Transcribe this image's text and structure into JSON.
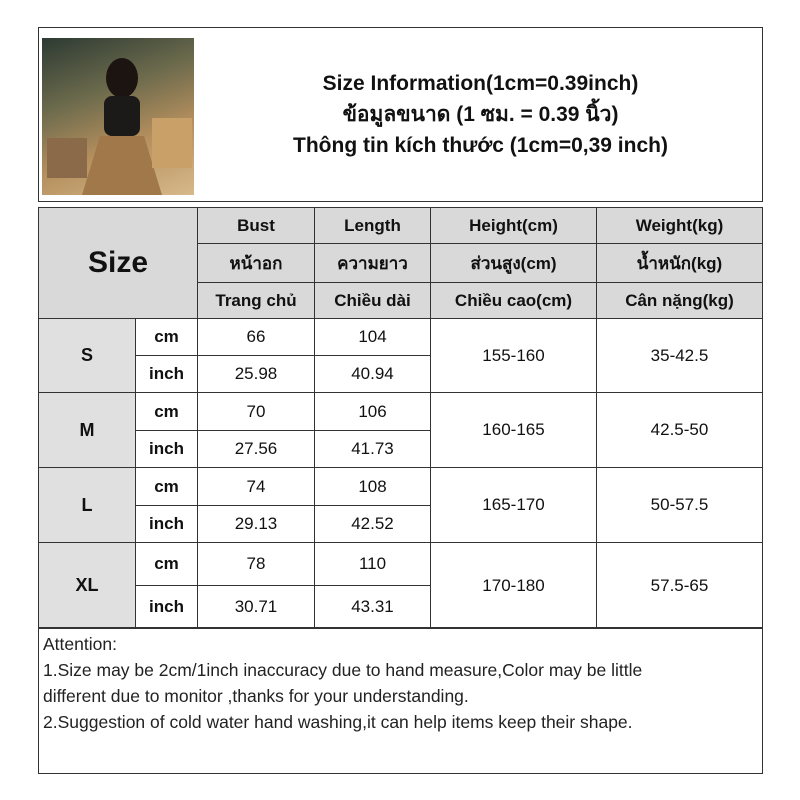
{
  "header": {
    "title_lines": [
      "Size Information(1cm=0.39inch)",
      "ข้อมูลขนาด (1 ซม. = 0.39 นิ้ว)",
      "Thông tin kích thước (1cm=0,39 inch)"
    ]
  },
  "table": {
    "size_label": "Size",
    "columns": [
      {
        "lines": [
          "Bust",
          "หน้าอก",
          "Trang chủ"
        ]
      },
      {
        "lines": [
          "Length",
          "ความยาว",
          "Chiều dài"
        ]
      },
      {
        "lines": [
          "Height(cm)",
          "ส่วนสูง(cm)",
          "Chiều cao(cm)"
        ]
      },
      {
        "lines": [
          "Weight(kg)",
          "น้ำหนัก(kg)",
          "Cân nặng(kg)"
        ]
      }
    ],
    "rows": [
      {
        "size": "S",
        "units": [
          "cm",
          "inch"
        ],
        "bust": [
          66,
          25.98
        ],
        "length": [
          104,
          40.94
        ],
        "height": "155-160",
        "weight": "35-42.5"
      },
      {
        "size": "M",
        "units": [
          "cm",
          "inch"
        ],
        "bust": [
          70,
          27.56
        ],
        "length": [
          106,
          41.73
        ],
        "height": "160-165",
        "weight": "42.5-50"
      },
      {
        "size": "L",
        "units": [
          "cm",
          "inch"
        ],
        "bust": [
          74,
          29.13
        ],
        "length": [
          108,
          42.52
        ],
        "height": "165-170",
        "weight": "50-57.5"
      },
      {
        "size": "XL",
        "units": [
          "cm",
          "inch"
        ],
        "bust": [
          78,
          30.71
        ],
        "length": [
          110,
          43.31
        ],
        "height": "170-180",
        "weight": "57.5-65"
      }
    ]
  },
  "notes": {
    "lines": [
      "Attention:",
      "1.Size may be 2cm/1inch inaccuracy due to hand measure,Color may be little",
      "different due to monitor ,thanks for your understanding.",
      "2.Suggestion of cold water hand washing,it can help items keep their shape."
    ]
  }
}
